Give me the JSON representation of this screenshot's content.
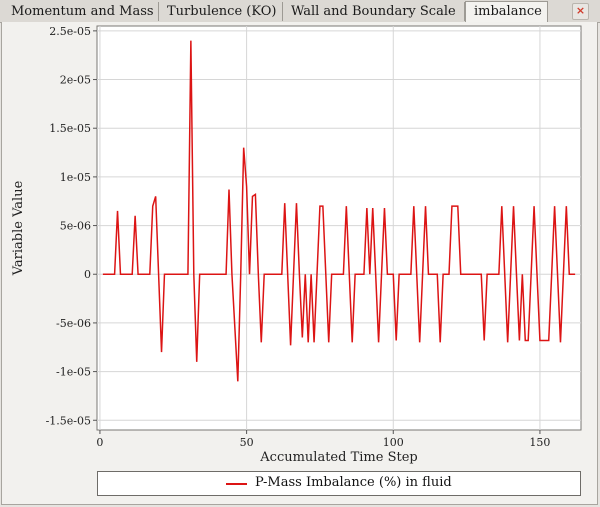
{
  "tabs": [
    {
      "label": "Momentum and Mass"
    },
    {
      "label": "Turbulence (KO)"
    },
    {
      "label": "Wall and Boundary Scale"
    },
    {
      "label": "imbalance",
      "active": true
    }
  ],
  "close_button": {
    "icon": "close-icon",
    "symbol": "×",
    "color": "#d03a2a"
  },
  "chart_data": {
    "type": "line",
    "xlabel": "Accumulated Time Step",
    "ylabel": "Variable Value",
    "xlim": [
      -1,
      164
    ],
    "ylim": [
      -1.6e-05,
      2.55e-05
    ],
    "x_ticks": [
      0,
      50,
      100,
      150
    ],
    "y_ticks": [
      {
        "value": 2.5e-05,
        "label": "2.5e-05"
      },
      {
        "value": 2e-05,
        "label": "2e-05"
      },
      {
        "value": 1.5e-05,
        "label": "1.5e-05"
      },
      {
        "value": 1e-05,
        "label": "1e-05"
      },
      {
        "value": 5e-06,
        "label": "5e-06"
      },
      {
        "value": 0,
        "label": "0"
      },
      {
        "value": -5e-06,
        "label": "-5e-06"
      },
      {
        "value": -1e-05,
        "label": "-1e-05"
      },
      {
        "value": -1.5e-05,
        "label": "-1.5e-05"
      }
    ],
    "grid": true,
    "legend_position": "bottom",
    "series": [
      {
        "name": "P-Mass Imbalance (%) in fluid",
        "color": "#dc1414",
        "points": [
          [
            1,
            0
          ],
          [
            5,
            0
          ],
          [
            6,
            6.5e-06
          ],
          [
            7,
            0
          ],
          [
            11,
            0
          ],
          [
            12,
            6e-06
          ],
          [
            13,
            0
          ],
          [
            17,
            0
          ],
          [
            18,
            7e-06
          ],
          [
            19,
            8e-06
          ],
          [
            20,
            0
          ],
          [
            21,
            -8e-06
          ],
          [
            22,
            0
          ],
          [
            30,
            0
          ],
          [
            31,
            2.4e-05
          ],
          [
            32,
            0
          ],
          [
            33,
            -9e-06
          ],
          [
            34,
            0
          ],
          [
            43,
            0
          ],
          [
            44,
            8.7e-06
          ],
          [
            45,
            0
          ],
          [
            47,
            -1.1e-05
          ],
          [
            48,
            0
          ],
          [
            49,
            1.3e-05
          ],
          [
            50,
            9e-06
          ],
          [
            51,
            0
          ],
          [
            52,
            8e-06
          ],
          [
            53,
            8.2e-06
          ],
          [
            54,
            0
          ],
          [
            55,
            -7e-06
          ],
          [
            56,
            0
          ],
          [
            62,
            0
          ],
          [
            63,
            7.3e-06
          ],
          [
            64,
            0
          ],
          [
            65,
            -7.3e-06
          ],
          [
            66,
            0
          ],
          [
            67,
            7.3e-06
          ],
          [
            68,
            0
          ],
          [
            69,
            -6.5e-06
          ],
          [
            70,
            0
          ],
          [
            71,
            -7e-06
          ],
          [
            72,
            0
          ],
          [
            73,
            -7e-06
          ],
          [
            74,
            0
          ],
          [
            75,
            7e-06
          ],
          [
            76,
            7e-06
          ],
          [
            77,
            0
          ],
          [
            78,
            -7e-06
          ],
          [
            79,
            0
          ],
          [
            83,
            0
          ],
          [
            84,
            7e-06
          ],
          [
            85,
            0
          ],
          [
            86,
            -7e-06
          ],
          [
            87,
            0
          ],
          [
            90,
            0
          ],
          [
            91,
            6.8e-06
          ],
          [
            92,
            0
          ],
          [
            93,
            6.8e-06
          ],
          [
            94,
            0
          ],
          [
            95,
            -7e-06
          ],
          [
            96,
            0
          ],
          [
            97,
            6.8e-06
          ],
          [
            98,
            0
          ],
          [
            100,
            0
          ],
          [
            101,
            -6.8e-06
          ],
          [
            102,
            0
          ],
          [
            106,
            0
          ],
          [
            107,
            7e-06
          ],
          [
            108,
            0
          ],
          [
            109,
            -7e-06
          ],
          [
            110,
            0
          ],
          [
            111,
            7e-06
          ],
          [
            112,
            0
          ],
          [
            115,
            0
          ],
          [
            116,
            -7e-06
          ],
          [
            117,
            0
          ],
          [
            119,
            0
          ],
          [
            120,
            7e-06
          ],
          [
            122,
            7e-06
          ],
          [
            123,
            0
          ],
          [
            130,
            0
          ],
          [
            131,
            -6.8e-06
          ],
          [
            132,
            0
          ],
          [
            136,
            0
          ],
          [
            137,
            7e-06
          ],
          [
            138,
            0
          ],
          [
            139,
            -7e-06
          ],
          [
            140,
            0
          ],
          [
            141,
            7e-06
          ],
          [
            142,
            0
          ],
          [
            143,
            -6.8e-06
          ],
          [
            144,
            0
          ],
          [
            145,
            -6.8e-06
          ],
          [
            146,
            -6.8e-06
          ],
          [
            147,
            0
          ],
          [
            148,
            7e-06
          ],
          [
            149,
            0
          ],
          [
            150,
            -6.8e-06
          ],
          [
            153,
            -6.8e-06
          ],
          [
            154,
            0
          ],
          [
            155,
            7e-06
          ],
          [
            156,
            0
          ],
          [
            157,
            -7e-06
          ],
          [
            158,
            0
          ],
          [
            159,
            7e-06
          ],
          [
            160,
            0
          ],
          [
            162,
            0
          ]
        ]
      }
    ]
  }
}
